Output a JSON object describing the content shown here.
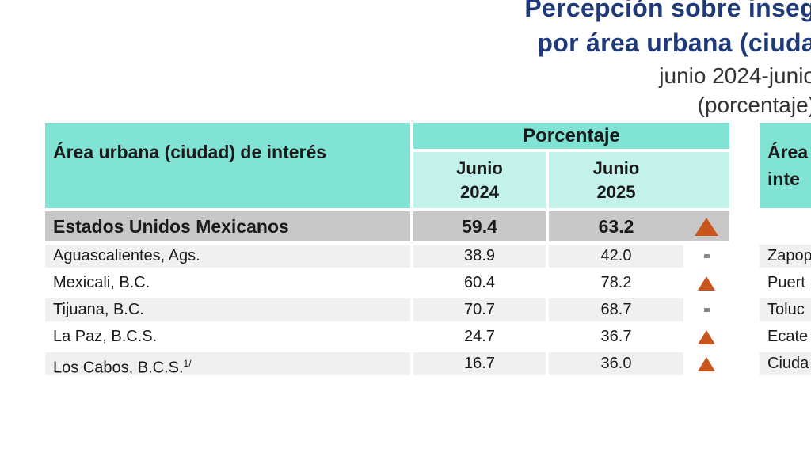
{
  "title": {
    "line1": "Percepción sobre inseg",
    "line2": "por área urbana (ciuda",
    "line3": "junio 2024-junio",
    "line4": "(porcentaje)"
  },
  "table": {
    "header_area": "Área urbana (ciudad) de interés",
    "header_group": "Porcentaje",
    "year1": "Junio 2024",
    "year2": "Junio 2025",
    "national": {
      "name": "Estados Unidos Mexicanos",
      "v2024": "59.4",
      "v2025": "63.2",
      "trend": "up"
    },
    "rows": [
      {
        "name": "Aguascalientes, Ags.",
        "sup": "",
        "v2024": "38.9",
        "v2025": "42.0",
        "trend": "same"
      },
      {
        "name": "Mexicali, B.C.",
        "sup": "",
        "v2024": "60.4",
        "v2025": "78.2",
        "trend": "up"
      },
      {
        "name": "Tijuana, B.C.",
        "sup": "",
        "v2024": "70.7",
        "v2025": "68.7",
        "trend": "same"
      },
      {
        "name": "La Paz, B.C.S.",
        "sup": "",
        "v2024": "24.7",
        "v2025": "36.7",
        "trend": "up"
      },
      {
        "name": "Los Cabos, B.C.S.",
        "sup": "1/",
        "v2024": "16.7",
        "v2025": "36.0",
        "trend": "up"
      }
    ]
  },
  "right_table": {
    "header": "Área urbana (ciudad) de interés",
    "header_line1": "Área",
    "header_line2": "inte",
    "rows": [
      "Zapop",
      "Puert",
      "Toluc",
      "Ecate",
      "Ciuda"
    ]
  },
  "colors": {
    "header_teal": "#80e3d4",
    "subheader_teal": "#c2f2ea",
    "title_blue": "#1f3a7a",
    "up_arrow": "#c8541e",
    "same_marker": "#8a8a8a"
  }
}
